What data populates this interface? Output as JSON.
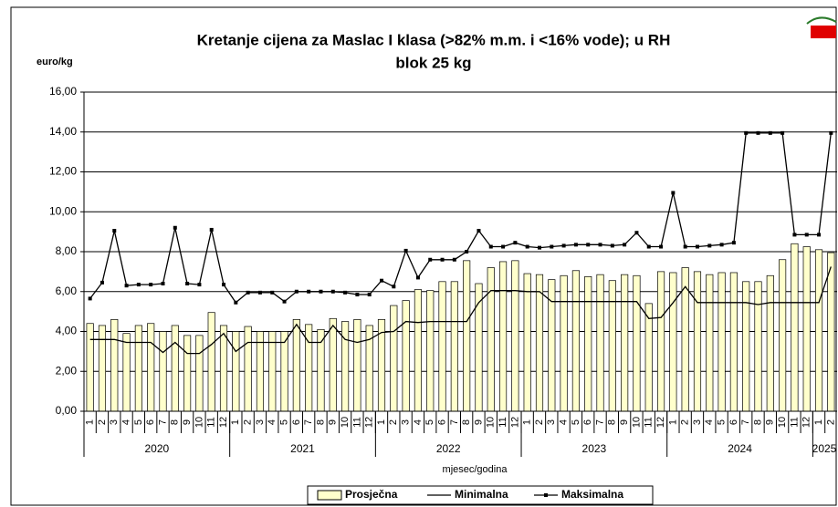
{
  "chart_data": {
    "type": "combo",
    "title": "Kretanje cijena za Maslac I klasa (>82% m.m. i <16% vode); u RH",
    "subtitle": "blok 25 kg",
    "y_label": "euro/kg",
    "x_label": "mjesec/godina",
    "categories": [
      "1",
      "2",
      "3",
      "4",
      "5",
      "6",
      "7",
      "8",
      "9",
      "10",
      "11",
      "12",
      "1",
      "2",
      "3",
      "4",
      "5",
      "6",
      "7",
      "8",
      "9",
      "10",
      "11",
      "12",
      "1",
      "2",
      "3",
      "4",
      "5",
      "6",
      "7",
      "8",
      "9",
      "10",
      "11",
      "12",
      "1",
      "2",
      "3",
      "4",
      "5",
      "6",
      "7",
      "8",
      "9",
      "10",
      "11",
      "12",
      "1",
      "2",
      "3",
      "4",
      "5",
      "6",
      "7",
      "8",
      "9",
      "10",
      "11",
      "12",
      "1",
      "2"
    ],
    "years": [
      "2020",
      "2021",
      "2022",
      "2023",
      "2024",
      "2025"
    ],
    "ylim": [
      0,
      16
    ],
    "yticks": [
      {
        "value": 0,
        "label": "0,00"
      },
      {
        "value": 2,
        "label": "2,00"
      },
      {
        "value": 4,
        "label": "4,00"
      },
      {
        "value": 6,
        "label": "6,00"
      },
      {
        "value": 8,
        "label": "8,00"
      },
      {
        "value": 10,
        "label": "10,00"
      },
      {
        "value": 12,
        "label": "12,00"
      },
      {
        "value": 14,
        "label": "14,00"
      },
      {
        "value": 16,
        "label": "16,00"
      }
    ],
    "grid": true,
    "legend": "bottom",
    "series": [
      {
        "name": "Prosječna",
        "type": "bar",
        "color": "#ffffcc",
        "values": [
          4.4,
          4.3,
          4.6,
          3.9,
          4.3,
          4.4,
          4.0,
          4.3,
          3.8,
          3.8,
          4.95,
          4.3,
          4.0,
          4.25,
          4.0,
          4.0,
          4.0,
          4.6,
          4.35,
          4.1,
          4.65,
          4.5,
          4.6,
          4.3,
          4.6,
          5.3,
          5.55,
          6.1,
          6.05,
          6.5,
          6.5,
          7.55,
          6.4,
          7.2,
          7.5,
          7.55,
          6.9,
          6.85,
          6.6,
          6.8,
          7.05,
          6.75,
          6.85,
          6.55,
          6.85,
          6.8,
          5.4,
          7.0,
          6.95,
          7.2,
          7.0,
          6.85,
          6.95,
          6.95,
          6.5,
          6.5,
          6.8,
          7.6,
          8.4,
          8.25,
          8.1,
          7.95
        ]
      },
      {
        "name": "Minimalna",
        "type": "line",
        "color": "#000000",
        "values": [
          3.6,
          3.6,
          3.6,
          3.45,
          3.45,
          3.45,
          2.95,
          3.45,
          2.9,
          2.9,
          3.35,
          3.9,
          3.0,
          3.45,
          3.45,
          3.45,
          3.45,
          4.35,
          3.45,
          3.45,
          4.3,
          3.6,
          3.45,
          3.6,
          3.95,
          4.0,
          4.5,
          4.45,
          4.5,
          4.5,
          4.5,
          4.5,
          5.45,
          6.05,
          6.05,
          6.05,
          6.0,
          6.0,
          5.5,
          5.5,
          5.5,
          5.5,
          5.5,
          5.5,
          5.5,
          5.5,
          4.65,
          4.7,
          5.45,
          6.25,
          5.45,
          5.45,
          5.45,
          5.45,
          5.45,
          5.35,
          5.45,
          5.45,
          5.45,
          5.45,
          5.45,
          7.25
        ]
      },
      {
        "name": "Maksimalna",
        "type": "line",
        "color": "#000000",
        "markers": true,
        "values": [
          5.65,
          6.45,
          9.05,
          6.3,
          6.35,
          6.35,
          6.4,
          9.2,
          6.4,
          6.35,
          9.1,
          6.35,
          5.45,
          5.95,
          5.95,
          5.95,
          5.5,
          6.0,
          6.0,
          6.0,
          6.0,
          5.95,
          5.85,
          5.85,
          6.55,
          6.25,
          8.05,
          6.7,
          7.6,
          7.6,
          7.6,
          8.0,
          9.05,
          8.25,
          8.25,
          8.45,
          8.25,
          8.2,
          8.25,
          8.3,
          8.35,
          8.35,
          8.35,
          8.3,
          8.35,
          8.95,
          8.25,
          8.25,
          10.95,
          8.25,
          8.25,
          8.3,
          8.35,
          8.45,
          13.95,
          13.95,
          13.95,
          13.95,
          8.85,
          8.85,
          8.85,
          13.95
        ]
      }
    ]
  }
}
